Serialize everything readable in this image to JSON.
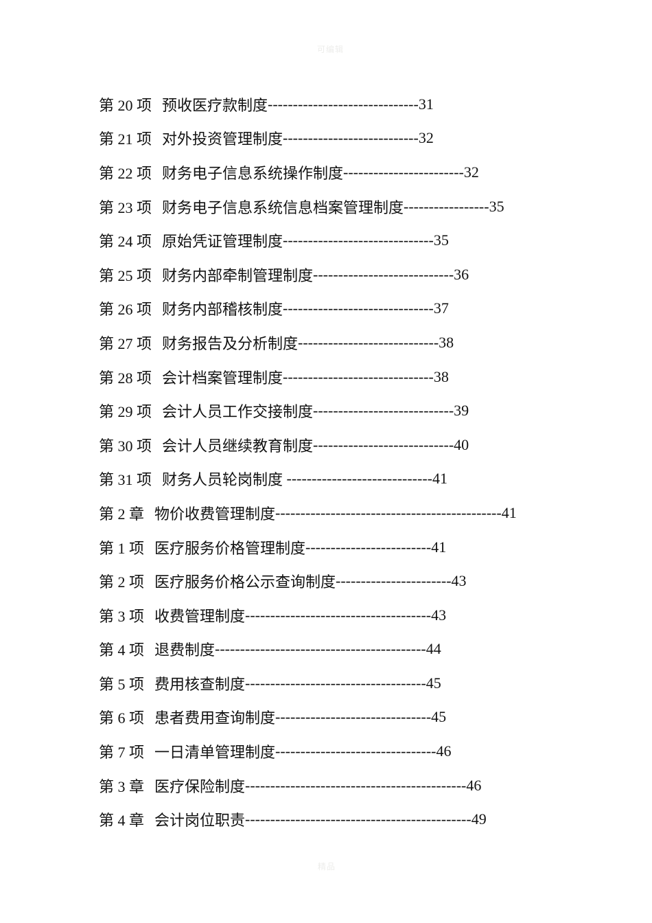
{
  "document": {
    "kind": "table-of-contents-page",
    "watermark_top": "可编辑",
    "watermark_bottom": "精品",
    "leader_char": "-",
    "colors": {
      "page_background": "#ffffff",
      "text": "#121212",
      "watermark": "#ededeb"
    }
  },
  "toc": {
    "entries": [
      {
        "num": "第 20 项",
        "title": "预收医疗款制度",
        "page": "31",
        "dashes": 30
      },
      {
        "num": "第 21 项",
        "title": "对外投资管理制度",
        "page": "32",
        "dashes": 27
      },
      {
        "num": "第 22 项",
        "title": "财务电子信息系统操作制度",
        "page": "32",
        "dashes": 24
      },
      {
        "num": "第 23 项",
        "title": "财务电子信息系统信息档案管理制度",
        "page": "35",
        "dashes": 17
      },
      {
        "num": "第 24 项",
        "title": "原始凭证管理制度",
        "page": "35",
        "dashes": 30
      },
      {
        "num": "第 25 项",
        "title": "财务内部牵制管理制度",
        "page": "36",
        "dashes": 28
      },
      {
        "num": "第 26 项",
        "title": "财务内部稽核制度",
        "page": "37",
        "dashes": 30
      },
      {
        "num": "第 27 项",
        "title": "财务报告及分析制度",
        "page": "38",
        "dashes": 28
      },
      {
        "num": "第 28 项",
        "title": "会计档案管理制度",
        "page": "38",
        "dashes": 30
      },
      {
        "num": "第 29 项",
        "title": "会计人员工作交接制度",
        "page": "39",
        "dashes": 28
      },
      {
        "num": "第 30 项",
        "title": "会计人员继续教育制度",
        "page": "40",
        "dashes": 28
      },
      {
        "num": "第 31 项",
        "title": "财务人员轮岗制度 ",
        "page": "41",
        "dashes": 29
      },
      {
        "num": "第 2 章",
        "title": "物价收费管理制度",
        "page": "41",
        "dashes": 45
      },
      {
        "num": "第 1 项",
        "title": "医疗服务价格管理制度",
        "page": "41",
        "dashes": 25
      },
      {
        "num": "第 2 项",
        "title": "医疗服务价格公示查询制度",
        "page": "43",
        "dashes": 23
      },
      {
        "num": "第 3 项",
        "title": "收费管理制度",
        "page": "43",
        "dashes": 37
      },
      {
        "num": "第 4 项",
        "title": "退费制度",
        "page": "44",
        "dashes": 42
      },
      {
        "num": "第 5 项",
        "title": "费用核查制度",
        "page": "45",
        "dashes": 36
      },
      {
        "num": "第 6 项",
        "title": "患者费用查询制度",
        "page": "45",
        "dashes": 31
      },
      {
        "num": "第 7 项",
        "title": "一日清单管理制度",
        "page": "46",
        "dashes": 32
      },
      {
        "num": "第 3 章",
        "title": "医疗保险制度",
        "page": "46",
        "dashes": 44
      },
      {
        "num": "第 4 章",
        "title": "会计岗位职责",
        "page": "49",
        "dashes": 45
      }
    ]
  }
}
